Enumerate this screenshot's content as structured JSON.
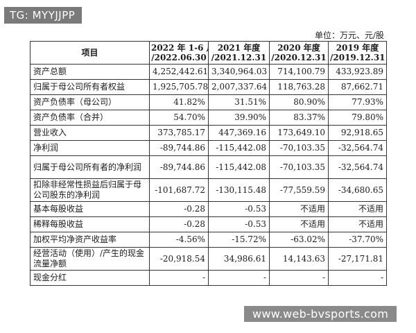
{
  "overlay_tag": "TG: MYYJJPP",
  "unit_note": "单位：万元、元/股",
  "table": {
    "headers": [
      "项目",
      "2022 年 1-6 月\n/2022.06.30",
      "2021 年度\n/2021.12.31",
      "2020 年度\n/2020.12.31",
      "2019 年度\n/2019.12.31"
    ],
    "rows": [
      {
        "label": "资产总额",
        "values": [
          "4,252,442.61",
          "3,340,964.03",
          "714,100.79",
          "433,923.89"
        ],
        "tall": false
      },
      {
        "label": "归属于母公司所有者权益",
        "values": [
          "1,925,705.78",
          "2,007,337.64",
          "118,763.28",
          "87,662.71"
        ],
        "tall": false
      },
      {
        "label": "资产负债率（母公司）",
        "values": [
          "41.82%",
          "31.51%",
          "80.90%",
          "77.93%"
        ],
        "tall": false
      },
      {
        "label": "资产负债率（合并）",
        "values": [
          "54.70%",
          "39.90%",
          "83.37%",
          "79.80%"
        ],
        "tall": false
      },
      {
        "label": "营业收入",
        "values": [
          "373,785.17",
          "447,369.16",
          "173,649.10",
          "92,918.65"
        ],
        "tall": false
      },
      {
        "label": "净利润",
        "values": [
          "-89,744.86",
          "-115,442.08",
          "-70,103.35",
          "-32,564.74"
        ],
        "tall": false
      },
      {
        "label": "归属于母公司所有者的净利润",
        "values": [
          "-89,744.86",
          "-115,442.08",
          "-70,103.35",
          "-32,564.74"
        ],
        "tall": true
      },
      {
        "label": "扣除非经常性损益后归属于母公司股东的净利润",
        "values": [
          "-101,687.72",
          "-130,115.48",
          "-77,559.59",
          "-34,680.65"
        ],
        "tall": true
      },
      {
        "label": "基本每股收益",
        "values": [
          "-0.28",
          "-0.53",
          "不适用",
          "不适用"
        ],
        "tall": false
      },
      {
        "label": "稀释每股收益",
        "values": [
          "-0.28",
          "-0.53",
          "不适用",
          "不适用"
        ],
        "tall": false
      },
      {
        "label": "加权平均净资产收益率",
        "values": [
          "-4.56%",
          "-15.72%",
          "-63.02%",
          "-37.70%"
        ],
        "tall": false
      },
      {
        "label": "经营活动（使用）/产生的现金流量净额",
        "values": [
          "-20,918.54",
          "34,986.61",
          "14,143.63",
          "-27,171.81"
        ],
        "tall": true
      },
      {
        "label": "现金分红",
        "values": [
          "-",
          "-",
          "-",
          "-"
        ],
        "tall": false
      }
    ]
  },
  "watermark": "www.web-bvsports.com"
}
